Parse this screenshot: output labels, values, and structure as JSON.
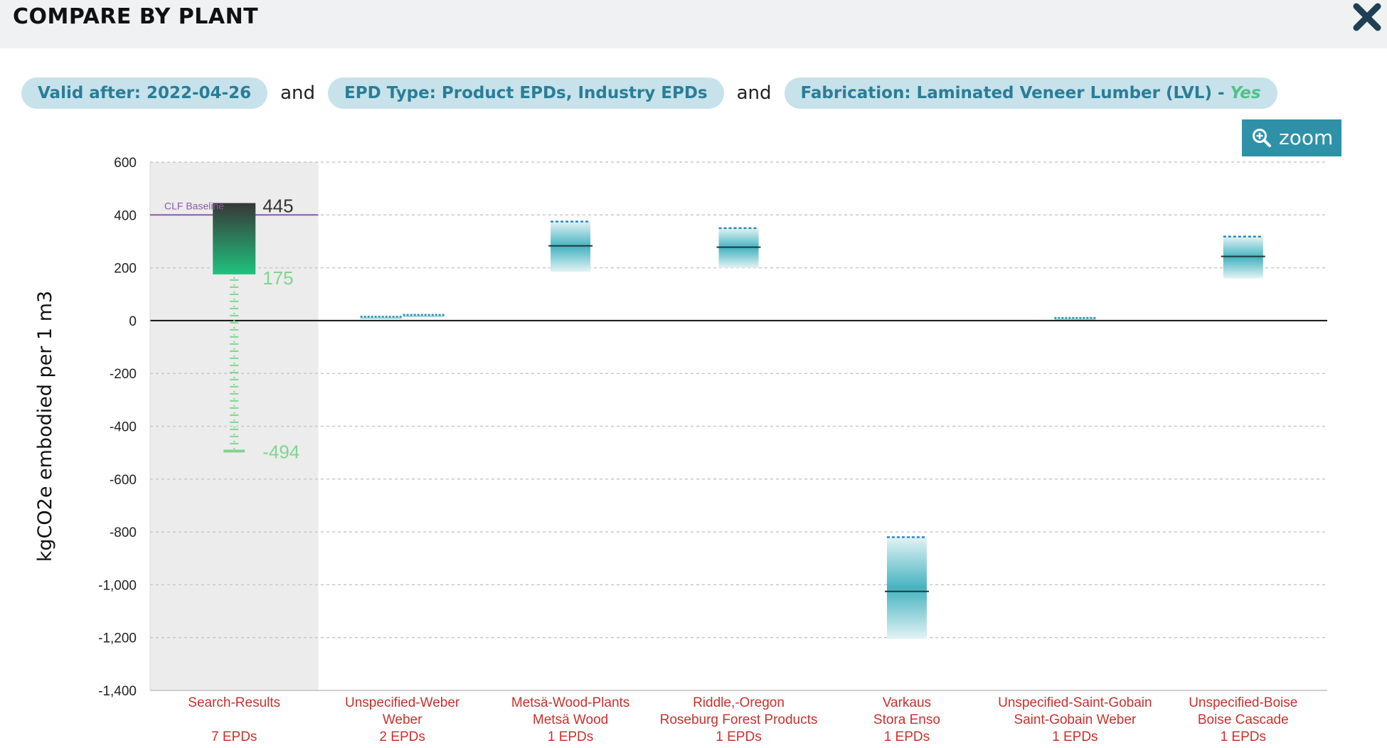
{
  "header": {
    "title": "COMPARE BY PLANT",
    "close_icon": "close-icon"
  },
  "filters": {
    "items": [
      {
        "label": "Valid after: 2022-04-26"
      },
      {
        "label": "EPD Type: Product EPDs, Industry EPDs"
      },
      {
        "label": "Fabrication: Laminated Veneer Lumber (LVL) - ",
        "suffix": "Yes"
      }
    ],
    "conjunction": "and"
  },
  "zoom": {
    "label": "zoom",
    "icon": "zoom-in-icon"
  },
  "colors": {
    "accent": "#2e91a8",
    "label_red": "#c8312e",
    "baseline_purple": "#8a5aa6",
    "green": "#7fd58f"
  },
  "chart_data": {
    "type": "box",
    "ylabel": "kgCO2e embodied per 1 m3",
    "ylim": [
      -1400,
      600
    ],
    "yticks": [
      600,
      400,
      200,
      0,
      -200,
      -400,
      -600,
      -800,
      -1000,
      -1200,
      -1400
    ],
    "ytick_labels": [
      "600",
      "400",
      "200",
      "0",
      "-200",
      "-400",
      "-600",
      "-800",
      "-1,000",
      "-1,200",
      "-1,400"
    ],
    "grid": true,
    "baseline": {
      "label": "CLF Baseline",
      "value": 400
    },
    "summary": {
      "high": 445,
      "mid": 175,
      "low": -494,
      "high_label": "445",
      "mid_label": "175",
      "low_label": "-494"
    },
    "categories": [
      {
        "name": "Search-Results",
        "company": "",
        "count": "7 EPDs"
      },
      {
        "name": "Unspecified-Weber",
        "company": "Weber",
        "count": "2 EPDs"
      },
      {
        "name": "Metsä-Wood-Plants",
        "company": "Metsä Wood",
        "count": "1 EPDs"
      },
      {
        "name": "Riddle,-Oregon",
        "company": "Roseburg Forest Products",
        "count": "1 EPDs"
      },
      {
        "name": "Varkaus",
        "company": "Stora Enso",
        "count": "1 EPDs"
      },
      {
        "name": "Unspecified-Saint-Gobain",
        "company": "Saint-Gobain Weber",
        "count": "1 EPDs"
      },
      {
        "name": "Unspecified-Boise",
        "company": "Boise Cascade",
        "count": "1 EPDs"
      }
    ],
    "boxes": [
      {
        "category": 1,
        "low": 15,
        "high": 15,
        "median": 15,
        "small": true,
        "xoff": -30
      },
      {
        "category": 1,
        "low": 22,
        "high": 22,
        "median": 22,
        "small": true,
        "xoff": 30
      },
      {
        "category": 2,
        "low": 185,
        "high": 375,
        "median": 283
      },
      {
        "category": 3,
        "low": 200,
        "high": 350,
        "median": 278
      },
      {
        "category": 4,
        "low": -1205,
        "high": -820,
        "median": -1025
      },
      {
        "category": 5,
        "low": 10,
        "high": 10,
        "median": 10,
        "small": true,
        "xoff": 0
      },
      {
        "category": 6,
        "low": 160,
        "high": 318,
        "median": 243
      }
    ]
  }
}
